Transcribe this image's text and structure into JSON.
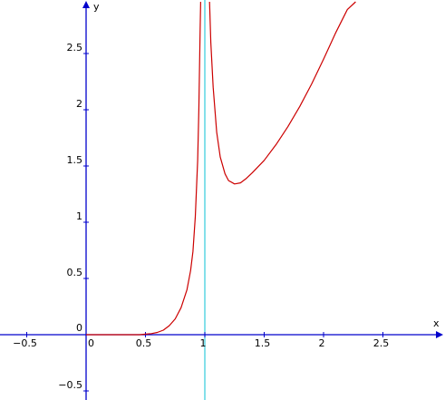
{
  "chart_data": {
    "type": "line",
    "xlabel": "x",
    "ylabel": "y",
    "x_ticks": [
      {
        "value": -0.5,
        "label": "−0.5"
      },
      {
        "value": 0,
        "label": "0"
      },
      {
        "value": 0.5,
        "label": "0.5"
      },
      {
        "value": 1,
        "label": "1"
      },
      {
        "value": 1.5,
        "label": "1.5"
      },
      {
        "value": 2,
        "label": "2"
      },
      {
        "value": 2.5,
        "label": "2.5"
      }
    ],
    "y_ticks": [
      {
        "value": -0.5,
        "label": "−0.5"
      },
      {
        "value": 0.5,
        "label": "0.5"
      },
      {
        "value": 1,
        "label": "1"
      },
      {
        "value": 1.5,
        "label": "1.5"
      },
      {
        "value": 2,
        "label": "2"
      },
      {
        "value": 2.5,
        "label": "2.5"
      }
    ],
    "xlim": [
      -0.75,
      2.93
    ],
    "ylim": [
      -0.58,
      2.96
    ],
    "asymptote_x": 1,
    "grid": false,
    "colors": {
      "curve": "#cc0000",
      "asymptote": "#33ccdd",
      "axes": "#0000cc"
    },
    "series": [
      {
        "x": [
          0,
          0.45,
          0.5,
          0.55,
          0.6,
          0.65,
          0.7,
          0.75,
          0.8,
          0.85,
          0.88,
          0.9,
          0.92,
          0.94,
          0.95,
          0.96,
          0.965
        ],
        "y": [
          0,
          0,
          0.005,
          0.01,
          0.02,
          0.04,
          0.08,
          0.14,
          0.24,
          0.4,
          0.57,
          0.74,
          1.05,
          1.55,
          2.0,
          2.7,
          2.96
        ]
      },
      {
        "x": [
          1.04,
          1.05,
          1.07,
          1.1,
          1.13,
          1.17,
          1.2,
          1.25,
          1.3,
          1.35,
          1.4,
          1.5,
          1.6,
          1.7,
          1.8,
          1.9,
          2.0,
          2.1,
          2.2,
          2.27
        ],
        "y": [
          2.96,
          2.6,
          2.2,
          1.8,
          1.58,
          1.43,
          1.37,
          1.34,
          1.35,
          1.39,
          1.44,
          1.55,
          1.69,
          1.85,
          2.03,
          2.23,
          2.45,
          2.68,
          2.89,
          2.96
        ]
      }
    ]
  }
}
